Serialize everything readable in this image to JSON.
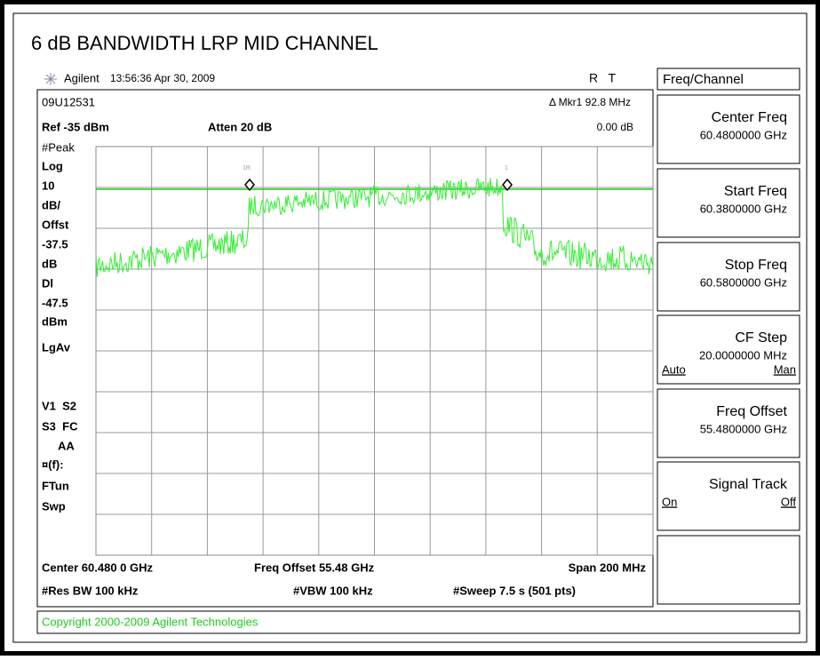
{
  "title": "6 dB BANDWIDTH LRP MID CHANNEL",
  "header": {
    "brand": "Agilent",
    "timestamp": "13:56:36  Apr 30, 2009",
    "flags": "R   T"
  },
  "screen": {
    "id": "09U12531",
    "marker": "Δ Mkr1  92.8 MHz",
    "ref": "Ref -35 dBm",
    "atten": "Atten 20 dB",
    "marker_delta": "0.00 dB",
    "left_labels": [
      "#Peak",
      "Log",
      "10",
      "dB/",
      "Offst",
      "-37.5",
      "dB",
      "Dl",
      "-47.5",
      "dBm",
      "LgAv",
      "V1  S2",
      "S3  FC",
      "AA",
      "¤(f):",
      "FTun",
      "Swp"
    ],
    "marker_tags": [
      "1R",
      "1"
    ],
    "center": "Center 60.480 0 GHz",
    "freq_offset": "Freq Offset 55.48 GHz",
    "span": "Span 200 MHz",
    "res_bw": "#Res BW 100 kHz",
    "vbw": "#VBW 100 kHz",
    "sweep": "#Sweep 7.5 s (501 pts)"
  },
  "copyright": "Copyright 2000-2009 Agilent Technologies",
  "menu": {
    "title": "Freq/Channel",
    "softkeys": [
      {
        "label": "Center Freq",
        "value": "60.4800000 GHz"
      },
      {
        "label": "Start Freq",
        "value": "60.3800000 GHz"
      },
      {
        "label": "Stop Freq",
        "value": "60.5800000 GHz"
      },
      {
        "label": "CF Step",
        "value": "20.0000000 MHz",
        "left": "Auto",
        "right": "Man"
      },
      {
        "label": "Freq Offset",
        "value": "55.4800000 GHz"
      },
      {
        "label": "Signal Track",
        "left": "On",
        "right": "Off"
      }
    ]
  }
}
